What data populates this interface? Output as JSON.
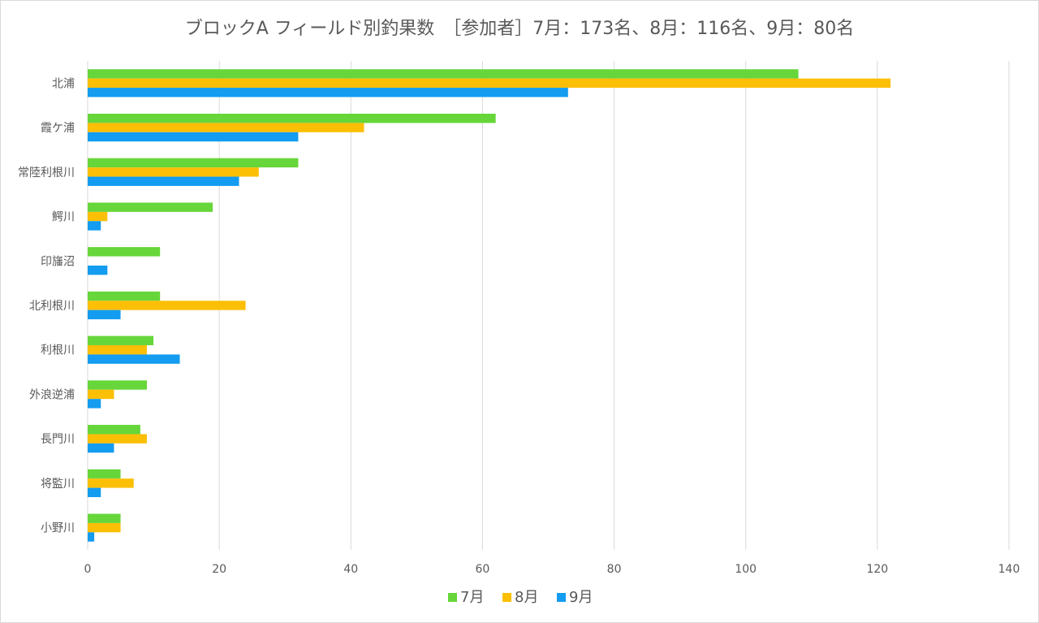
{
  "chart_data": {
    "type": "bar",
    "orientation": "horizontal",
    "title": "ブロックA フィールド別釣果数　［参加者］7月：173名、8月：116名、9月：80名",
    "categories": [
      "北浦",
      "霞ケ浦",
      "常陸利根川",
      "鰐川",
      "印旛沼",
      "北利根川",
      "利根川",
      "外浪逆浦",
      "長門川",
      "将監川",
      "小野川"
    ],
    "series": [
      {
        "name": "7月",
        "color": "#66d63a",
        "values": [
          108,
          62,
          32,
          19,
          11,
          11,
          10,
          9,
          8,
          5,
          5
        ]
      },
      {
        "name": "8月",
        "color": "#fbbf06",
        "values": [
          122,
          42,
          26,
          3,
          0,
          24,
          9,
          4,
          9,
          7,
          5
        ]
      },
      {
        "name": "9月",
        "color": "#139cf0",
        "values": [
          73,
          32,
          23,
          2,
          3,
          5,
          14,
          2,
          4,
          2,
          1
        ]
      }
    ],
    "xlim": [
      0,
      140
    ],
    "xticks": [
      0,
      20,
      40,
      60,
      80,
      100,
      120,
      140
    ],
    "grid": "vertical",
    "legend": "bottom"
  }
}
